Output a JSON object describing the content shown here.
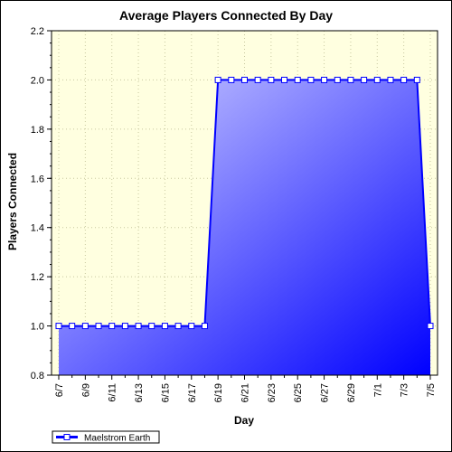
{
  "chart_data": {
    "type": "area",
    "title": "Average Players Connected By Day",
    "xlabel": "Day",
    "ylabel": "Players Connected",
    "ylim": [
      0.8,
      2.2
    ],
    "yticks": [
      "0.8",
      "1.0",
      "1.2",
      "1.4",
      "1.6",
      "1.8",
      "2.0",
      "2.2"
    ],
    "x": [
      "6/7",
      "6/8",
      "6/9",
      "6/10",
      "6/11",
      "6/12",
      "6/13",
      "6/14",
      "6/15",
      "6/16",
      "6/17",
      "6/18",
      "6/19",
      "6/20",
      "6/21",
      "6/22",
      "6/23",
      "6/24",
      "6/25",
      "6/26",
      "6/27",
      "6/28",
      "6/29",
      "6/30",
      "7/1",
      "7/2",
      "7/3",
      "7/4",
      "7/5"
    ],
    "xtick_labels": [
      "6/7",
      "6/9",
      "6/11",
      "6/13",
      "6/15",
      "6/17",
      "6/19",
      "6/21",
      "6/23",
      "6/25",
      "6/27",
      "6/29",
      "7/1",
      "7/3",
      "7/5"
    ],
    "series": [
      {
        "name": "Maelstrom Earth",
        "values": [
          1,
          1,
          1,
          1,
          1,
          1,
          1,
          1,
          1,
          1,
          1,
          1,
          2,
          2,
          2,
          2,
          2,
          2,
          2,
          2,
          2,
          2,
          2,
          2,
          2,
          2,
          2,
          2,
          1
        ]
      }
    ],
    "grid": true,
    "legend_position": "bottom-left",
    "colors": {
      "plot_background": "#ffffe0",
      "area_light": "#d8d8ff",
      "area_dark": "#0000ff",
      "line": "#0000ff",
      "marker_fill": "#ffffff",
      "grid": "#c8c8a0"
    }
  }
}
